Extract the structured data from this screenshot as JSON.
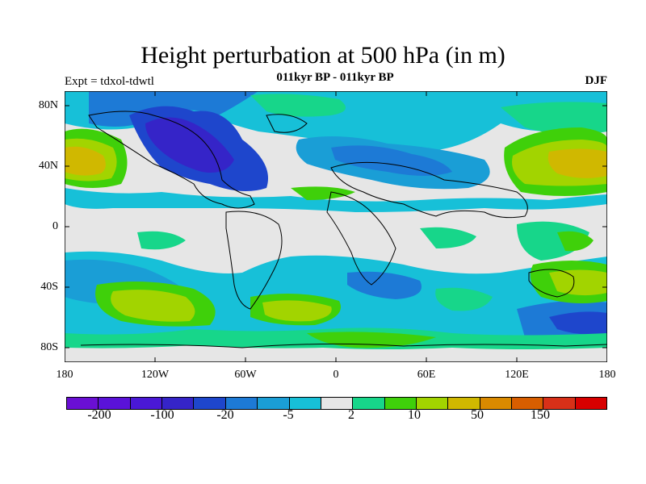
{
  "title": "Height perturbation at 500 hPa (in m)",
  "subtitle": "011kyr BP - 011kyr BP",
  "left_label": "Expt = tdxol-tdwtl",
  "right_label": "DJF",
  "lat_labels": [
    "80N",
    "40N",
    "0",
    "40S",
    "80S"
  ],
  "lon_labels": [
    "180",
    "120W",
    "60W",
    "0",
    "60E",
    "120E",
    "180"
  ],
  "colorbar": {
    "colors": [
      "#6a0fd4",
      "#5a12d9",
      "#4a18d6",
      "#3524c8",
      "#1e46cc",
      "#1d7ad6",
      "#1a9ed6",
      "#17c0d8",
      "#e6e6e6",
      "#17d68a",
      "#3fd00a",
      "#a2d400",
      "#d0b800",
      "#da8a00",
      "#d85e00",
      "#d83018",
      "#d80000"
    ],
    "labels": [
      "-200",
      "-100",
      "-20",
      "-5",
      "2",
      "10",
      "50",
      "150"
    ]
  }
}
